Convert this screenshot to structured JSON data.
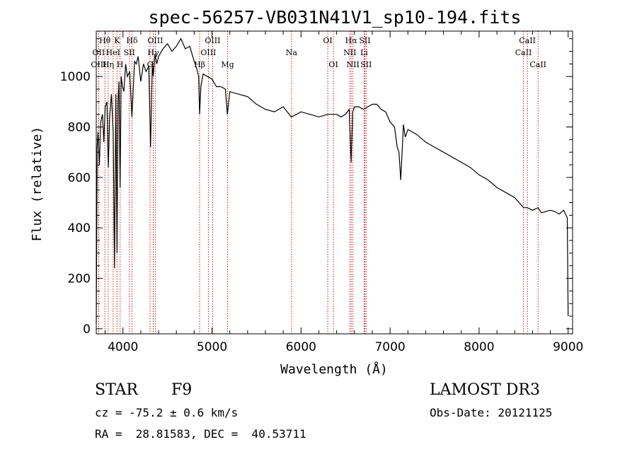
{
  "chart_data": {
    "type": "line",
    "title": "spec-56257-VB031N41V1_sp10-194.fits",
    "xlabel": "Wavelength (Å)",
    "ylabel": "Flux (relative)",
    "xlim": [
      3700,
      9050
    ],
    "ylim": [
      -20,
      1180
    ],
    "xticks": [
      4000,
      5000,
      6000,
      7000,
      8000,
      9000
    ],
    "yticks": [
      0,
      200,
      400,
      600,
      800,
      1000
    ],
    "series": [
      {
        "name": "flux",
        "x": [
          3700,
          3705,
          3710,
          3720,
          3735,
          3750,
          3770,
          3785,
          3800,
          3820,
          3835,
          3850,
          3870,
          3890,
          3905,
          3920,
          3933,
          3945,
          3955,
          3968,
          3980,
          3995,
          4010,
          4030,
          4050,
          4075,
          4101,
          4130,
          4150,
          4170,
          4200,
          4230,
          4260,
          4290,
          4310,
          4330,
          4340,
          4360,
          4380,
          4400,
          4450,
          4500,
          4550,
          4600,
          4650,
          4700,
          4750,
          4800,
          4830,
          4850,
          4861,
          4875,
          4900,
          4950,
          5000,
          5050,
          5100,
          5150,
          5172,
          5200,
          5300,
          5400,
          5500,
          5600,
          5700,
          5800,
          5890,
          5950,
          6000,
          6100,
          6200,
          6300,
          6400,
          6450,
          6500,
          6540,
          6563,
          6580,
          6600,
          6650,
          6700,
          6750,
          6800,
          6850,
          6900,
          6950,
          7000,
          7050,
          7080,
          7100,
          7120,
          7150,
          7170,
          7200,
          7300,
          7400,
          7500,
          7600,
          7700,
          7800,
          7900,
          8000,
          8100,
          8200,
          8300,
          8400,
          8500,
          8542,
          8600,
          8662,
          8700,
          8800,
          8850,
          8900,
          8950,
          8990,
          9000
        ],
        "values": [
          20,
          350,
          720,
          780,
          650,
          820,
          850,
          740,
          880,
          900,
          640,
          840,
          930,
          780,
          240,
          930,
          300,
          900,
          980,
          560,
          1000,
          960,
          940,
          1050,
          1000,
          1020,
          840,
          1060,
          1050,
          1080,
          980,
          1050,
          1020,
          1040,
          720,
          1060,
          1000,
          1090,
          1050,
          1080,
          1110,
          1130,
          1100,
          1120,
          1150,
          1110,
          1120,
          1060,
          1030,
          1000,
          850,
          960,
          1010,
          1000,
          990,
          960,
          960,
          950,
          850,
          940,
          930,
          920,
          890,
          870,
          860,
          880,
          840,
          850,
          860,
          850,
          840,
          850,
          850,
          840,
          850,
          870,
          660,
          860,
          880,
          880,
          870,
          880,
          890,
          890,
          870,
          860,
          820,
          800,
          720,
          700,
          590,
          810,
          760,
          790,
          770,
          740,
          720,
          700,
          680,
          660,
          640,
          610,
          590,
          560,
          540,
          520,
          480,
          480,
          470,
          480,
          460,
          470,
          465,
          455,
          470,
          440,
          50
        ]
      }
    ],
    "spectral_lines": [
      {
        "name": "Hθ",
        "wave": 3797,
        "tier": 0
      },
      {
        "name": "K",
        "wave": 3933,
        "tier": 0
      },
      {
        "name": "Hδ",
        "wave": 4101,
        "tier": 0
      },
      {
        "name": "OIII",
        "wave": 4363,
        "tier": 0
      },
      {
        "name": "OIII",
        "wave": 5007,
        "tier": 0
      },
      {
        "name": "OI",
        "wave": 6300,
        "tier": 0
      },
      {
        "name": "Hα",
        "wave": 6563,
        "tier": 0
      },
      {
        "name": "SII",
        "wave": 6717,
        "tier": 0
      },
      {
        "name": "CaII",
        "wave": 8542,
        "tier": 0
      },
      {
        "name": "OII",
        "wave": 3727,
        "tier": 1
      },
      {
        "name": "HeI",
        "wave": 3889,
        "tier": 1
      },
      {
        "name": "SII",
        "wave": 4072,
        "tier": 1
      },
      {
        "name": "Hγ",
        "wave": 4340,
        "tier": 1
      },
      {
        "name": "OIII",
        "wave": 4959,
        "tier": 1
      },
      {
        "name": "Na",
        "wave": 5893,
        "tier": 1
      },
      {
        "name": "NII",
        "wave": 6548,
        "tier": 1
      },
      {
        "name": "Li",
        "wave": 6708,
        "tier": 1
      },
      {
        "name": "CaII",
        "wave": 8498,
        "tier": 1
      },
      {
        "name": "OIII",
        "wave": 3727,
        "tier": 2
      },
      {
        "name": "Hη",
        "wave": 3835,
        "tier": 2
      },
      {
        "name": "H",
        "wave": 3968,
        "tier": 2
      },
      {
        "name": "G",
        "wave": 4304,
        "tier": 2
      },
      {
        "name": "Hβ",
        "wave": 4861,
        "tier": 2
      },
      {
        "name": "Mg",
        "wave": 5175,
        "tier": 2
      },
      {
        "name": "OI",
        "wave": 6364,
        "tier": 2
      },
      {
        "name": "NII",
        "wave": 6583,
        "tier": 2
      },
      {
        "name": "SII",
        "wave": 6731,
        "tier": 2
      },
      {
        "name": "CaII",
        "wave": 8662,
        "tier": 2
      }
    ]
  },
  "info": {
    "object_class": "STAR",
    "subclass": "F9",
    "survey": "LAMOST DR3",
    "redshift_line": "cz = -75.2 ± 0.6 km/s",
    "obs_date_line": "Obs-Date: 20121125",
    "coords_line": "RA =  28.81583, DEC =  40.53711"
  },
  "colors": {
    "line_marker": "#cc0000",
    "spectrum": "#000000"
  }
}
